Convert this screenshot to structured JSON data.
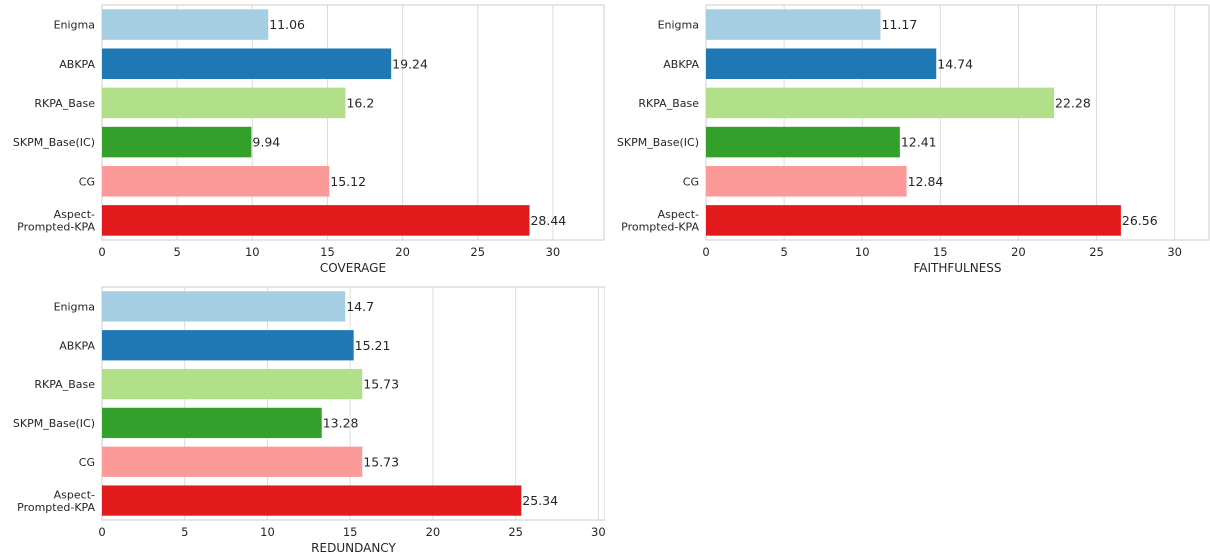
{
  "colors": [
    "#a6cee3",
    "#1f78b4",
    "#b2df8a",
    "#33a02c",
    "#fb9a99",
    "#e31a1c"
  ],
  "chart_data": [
    {
      "type": "bar",
      "orientation": "horizontal",
      "categories": [
        "Enigma",
        "ABKPA",
        "RKPA_Base",
        "SKPM_Base(IC)",
        "CG",
        "Aspect-\nPrompted-KPA"
      ],
      "values": [
        11.06,
        19.24,
        16.2,
        9.94,
        15.12,
        28.44
      ],
      "value_labels": [
        "11.06",
        "19.24",
        "16.2",
        "9.94",
        "15.12",
        "28.44"
      ],
      "xlabel": "COVERAGE",
      "ylabel": "",
      "xlim": [
        0,
        33.4
      ],
      "xticks": [
        0,
        5,
        10,
        15,
        20,
        25,
        30
      ],
      "grid": "vertical"
    },
    {
      "type": "bar",
      "orientation": "horizontal",
      "categories": [
        "Enigma",
        "ABKPA",
        "RKPA_Base",
        "SKPM_Base(IC)",
        "CG",
        "Aspect-\nPrompted-KPA"
      ],
      "values": [
        11.17,
        14.74,
        22.28,
        12.41,
        12.84,
        26.56
      ],
      "value_labels": [
        "11.17",
        "14.74",
        "22.28",
        "12.41",
        "12.84",
        "26.56"
      ],
      "xlabel": "FAITHFULNESS",
      "ylabel": "",
      "xlim": [
        0,
        32.2
      ],
      "xticks": [
        0,
        5,
        10,
        15,
        20,
        25,
        30
      ],
      "grid": "vertical"
    },
    {
      "type": "bar",
      "orientation": "horizontal",
      "categories": [
        "Enigma",
        "ABKPA",
        "RKPA_Base",
        "SKPM_Base(IC)",
        "CG",
        "Aspect-\nPrompted-KPA"
      ],
      "values": [
        14.7,
        15.21,
        15.73,
        13.28,
        15.73,
        25.34
      ],
      "value_labels": [
        "14.7",
        "15.21",
        "15.73",
        "13.28",
        "15.73",
        "25.34"
      ],
      "xlabel": "REDUNDANCY",
      "ylabel": "",
      "xlim": [
        0,
        30.4
      ],
      "xticks": [
        0,
        5,
        10,
        15,
        20,
        25,
        30
      ],
      "grid": "vertical"
    }
  ]
}
